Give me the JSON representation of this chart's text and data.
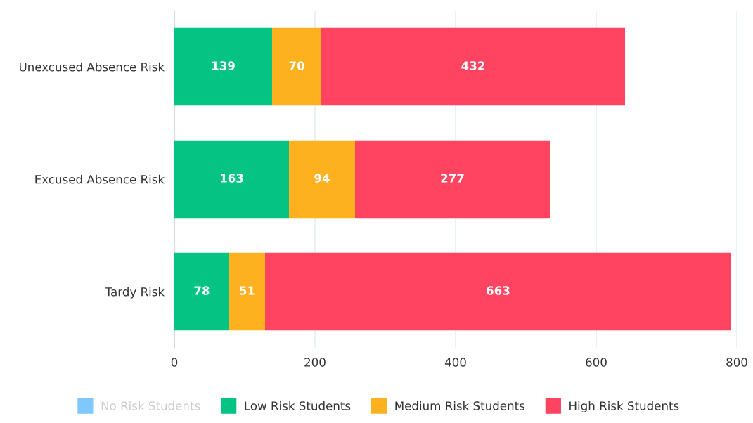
{
  "chart_data": {
    "type": "bar",
    "orientation": "horizontal",
    "stacked": true,
    "categories": [
      "Unexcused Absence Risk",
      "Excused Absence Risk",
      "Tardy Risk"
    ],
    "series": [
      {
        "name": "No Risk Students",
        "color": "#7ec8fb",
        "values": [
          null,
          null,
          null
        ]
      },
      {
        "name": "Low Risk Students",
        "color": "#05c383",
        "values": [
          139,
          163,
          78
        ]
      },
      {
        "name": "Medium Risk Students",
        "color": "#fdb11f",
        "values": [
          70,
          94,
          51
        ]
      },
      {
        "name": "High Risk Students",
        "color": "#fe4460",
        "values": [
          432,
          277,
          663
        ]
      }
    ],
    "xlim": [
      0,
      800
    ],
    "xticks": [
      0,
      200,
      400,
      600,
      800
    ],
    "grid": "x",
    "legend": "bottom",
    "data_labels": true
  }
}
